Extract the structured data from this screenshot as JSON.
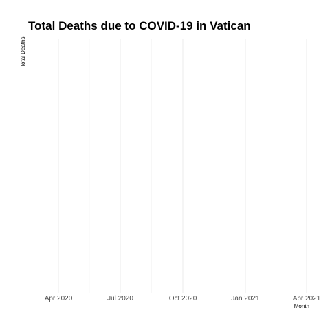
{
  "chart_data": {
    "type": "line",
    "title": "Total Deaths due to COVID-19 in Vatican",
    "xlabel": "Month",
    "ylabel": "Total Deaths",
    "x_ticks": [
      {
        "date": "2020-04-01",
        "label": "Apr 2020"
      },
      {
        "date": "2020-07-01",
        "label": "Jul 2020"
      },
      {
        "date": "2020-10-01",
        "label": "Oct 2020"
      },
      {
        "date": "2021-01-01",
        "label": "Jan 2021"
      },
      {
        "date": "2021-04-01",
        "label": "Apr 2021"
      }
    ],
    "xlim": [
      "2020-02-15",
      "2021-04-01"
    ],
    "series": [
      {
        "values": []
      }
    ],
    "grid": "vertical-only",
    "legend": "none",
    "colors": {
      "background": "#ffffff",
      "grid_major": "#ebebeb",
      "grid_minor": "#f2f2f2",
      "tick_text": "#4d4d4d",
      "title_text": "#000000"
    }
  }
}
